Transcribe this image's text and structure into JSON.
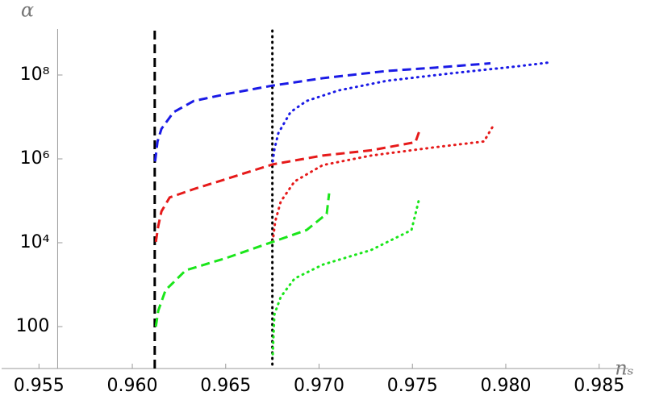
{
  "chart_data": {
    "type": "line",
    "x_label": "nₛ",
    "y_label": "α",
    "xlim": [
      0.953,
      0.987
    ],
    "ylim": [
      10,
      1000000000
    ],
    "log_y": true,
    "axes_origin": [
      0.956,
      10
    ],
    "xticks": [
      0.955,
      {
        "value": 0.96,
        "label": "0.960"
      },
      0.965,
      {
        "value": 0.97,
        "label": "0.970"
      },
      0.975,
      {
        "value": 0.98,
        "label": "0.980"
      },
      0.985
    ],
    "yticks": [
      100,
      {
        "value": 10000,
        "label": "10⁴"
      },
      {
        "value": 1000000,
        "label": "10⁶"
      },
      {
        "value": 100000000,
        "label": "10⁸"
      }
    ],
    "vlines": [
      {
        "x": 0.9612,
        "color": "#000000",
        "dash": "dashed"
      },
      {
        "x": 0.9675,
        "color": "#000000",
        "dash": "dotted"
      }
    ],
    "series": [
      {
        "color": "#1a1ae6",
        "dash": "dashed",
        "x": [
          0.96122,
          0.96135,
          0.96156,
          0.96221,
          0.96329,
          0.96502,
          0.96752,
          0.9702,
          0.97365,
          0.97624,
          0.97918
        ],
        "values": [
          870000,
          2600000,
          5200000,
          13000000,
          24000000,
          35000000,
          56000000,
          84000000,
          125000000,
          150000000,
          190000000
        ]
      },
      {
        "color": "#1a1ae6",
        "dash": "dotted",
        "x": [
          0.96752,
          0.96761,
          0.96782,
          0.96847,
          0.96933,
          0.97106,
          0.97365,
          0.97711,
          0.98056,
          0.98238
        ],
        "values": [
          870000,
          1700000,
          4100000,
          13000000,
          24000000,
          43000000,
          73000000,
          110000000,
          160000000,
          200000000
        ]
      },
      {
        "color": "#e61a1a",
        "dash": "dashed",
        "x": [
          0.96126,
          0.96139,
          0.96156,
          0.962,
          0.96329,
          0.96502,
          0.96752,
          0.9702,
          0.97279,
          0.97516,
          0.97538
        ],
        "values": [
          10500,
          25000,
          56000,
          120000,
          190000,
          330000,
          740000,
          1200000,
          1600000,
          2500000,
          4700000
        ]
      },
      {
        "color": "#e61a1a",
        "dash": "dotted",
        "x": [
          0.96752,
          0.96765,
          0.96795,
          0.96869,
          0.9702,
          0.97279,
          0.97624,
          0.97883,
          0.97935
        ],
        "values": [
          10500,
          32000,
          96000,
          290000,
          710000,
          1200000,
          1900000,
          2600000,
          6400000
        ]
      },
      {
        "color": "#1ae61a",
        "dash": "dashed",
        "x": [
          0.96126,
          0.96139,
          0.96178,
          0.96286,
          0.96502,
          0.96752,
          0.96933,
          0.97041,
          0.97054
        ],
        "values": [
          100,
          240,
          740,
          2200,
          4300,
          10500,
          20000,
          49000,
          150000
        ]
      },
      {
        "color": "#1ae61a",
        "dash": "dotted",
        "x": [
          0.96752,
          0.96756,
          0.96761,
          0.96795,
          0.96869,
          0.9702,
          0.97279,
          0.97495,
          0.97538
        ],
        "values": [
          22,
          60,
          195,
          510,
          1400,
          3000,
          6700,
          20000,
          120000
        ]
      }
    ]
  }
}
